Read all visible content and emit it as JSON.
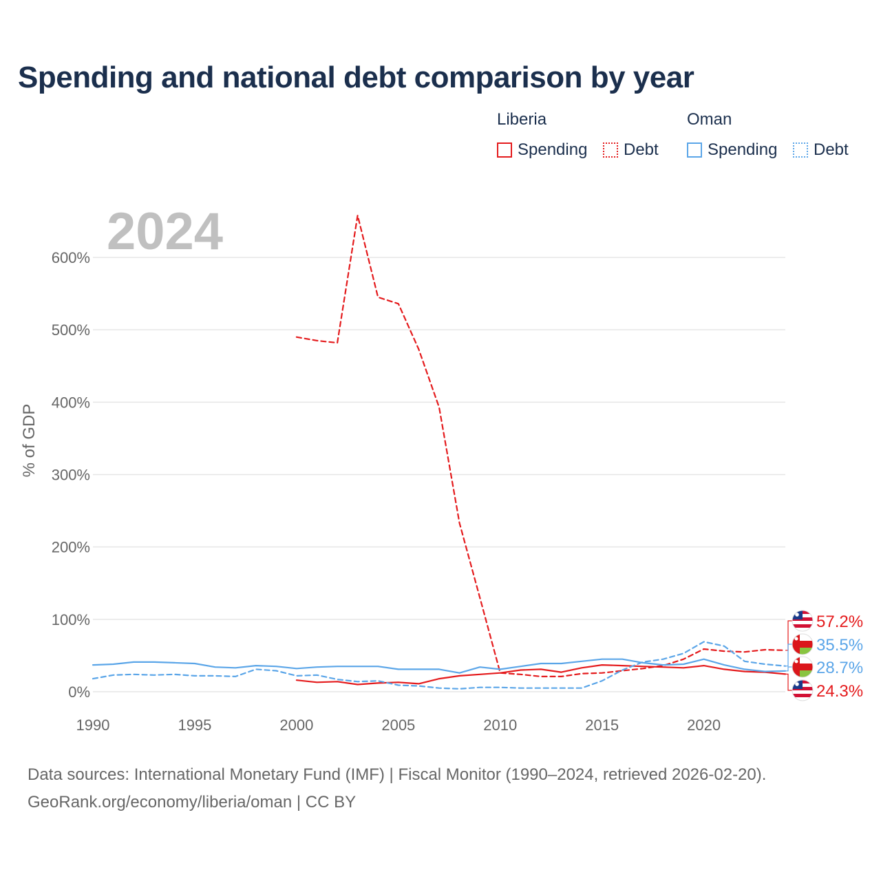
{
  "title": "Spending and national debt comparison by year",
  "legend": {
    "groups": [
      {
        "country": "Liberia",
        "items": [
          {
            "label": "Spending",
            "style": "solid"
          },
          {
            "label": "Debt",
            "style": "dotted"
          }
        ],
        "color": "#e41a1c"
      },
      {
        "country": "Oman",
        "items": [
          {
            "label": "Spending",
            "style": "solid"
          },
          {
            "label": "Debt",
            "style": "dotted"
          }
        ],
        "color": "#5aa5e8"
      }
    ]
  },
  "year_label": "2024",
  "footer": {
    "sources": "Data sources: International Monetary Fund (IMF) | Fiscal Monitor (1990–2024, retrieved 2026-02-20).",
    "credit": "GeoRank.org/economy/liberia/oman | CC BY"
  },
  "end_labels": [
    {
      "text": "57.2%",
      "color": "#e41a1c",
      "flag": "liberia-flag-icon"
    },
    {
      "text": "35.5%",
      "color": "#5aa5e8",
      "flag": "oman-flag-icon"
    },
    {
      "text": "28.7%",
      "color": "#5aa5e8",
      "flag": "oman-flag-icon"
    },
    {
      "text": "24.3%",
      "color": "#e41a1c",
      "flag": "liberia-flag-icon"
    }
  ],
  "colors": {
    "liberia": "#e41a1c",
    "oman": "#5aa5e8",
    "grid": "#e6e6e6",
    "axis_text": "#666666",
    "title": "#1b2f4d",
    "year": "#c0c0c0"
  },
  "chart_data": {
    "type": "line",
    "title": "Spending and national debt comparison by year",
    "xlabel": "",
    "ylabel": "% of GDP",
    "xlim": [
      1990,
      2024
    ],
    "ylim": [
      0,
      600
    ],
    "x_ticks": [
      1990,
      1995,
      2000,
      2005,
      2010,
      2015,
      2020
    ],
    "x_tick_labels": [
      "1990",
      "1995",
      "2000",
      "2005",
      "2010",
      "2015",
      "2020"
    ],
    "y_ticks": [
      0,
      100,
      200,
      300,
      400,
      500,
      600
    ],
    "y_tick_labels": [
      "0%",
      "100%",
      "200%",
      "300%",
      "400%",
      "500%",
      "600%"
    ],
    "series": [
      {
        "name": "Liberia Spending",
        "country": "Liberia",
        "measure": "Spending",
        "style": "solid",
        "color": "#e41a1c",
        "x": [
          2000,
          2001,
          2002,
          2003,
          2004,
          2005,
          2006,
          2007,
          2008,
          2009,
          2010,
          2011,
          2012,
          2013,
          2014,
          2015,
          2016,
          2017,
          2018,
          2019,
          2020,
          2021,
          2022,
          2023,
          2024
        ],
        "values": [
          16,
          13,
          14,
          10,
          12,
          13,
          11,
          18,
          22,
          24,
          26,
          30,
          31,
          27,
          33,
          37,
          36,
          35,
          34,
          33,
          36,
          31,
          28,
          27,
          24.3
        ]
      },
      {
        "name": "Liberia Debt",
        "country": "Liberia",
        "measure": "Debt",
        "style": "dashed",
        "color": "#e41a1c",
        "x": [
          2000,
          2001,
          2002,
          2003,
          2004,
          2005,
          2006,
          2007,
          2008,
          2009,
          2010,
          2011,
          2012,
          2013,
          2014,
          2015,
          2016,
          2017,
          2018,
          2019,
          2020,
          2021,
          2022,
          2023,
          2024
        ],
        "values": [
          490,
          485,
          482,
          658,
          545,
          536,
          473,
          393,
          233,
          130,
          26,
          24,
          21,
          21,
          25,
          26,
          29,
          32,
          36,
          45,
          59,
          56,
          55,
          58,
          57.2
        ]
      },
      {
        "name": "Oman Spending",
        "country": "Oman",
        "measure": "Spending",
        "style": "solid",
        "color": "#5aa5e8",
        "x": [
          1990,
          1991,
          1992,
          1993,
          1994,
          1995,
          1996,
          1997,
          1998,
          1999,
          2000,
          2001,
          2002,
          2003,
          2004,
          2005,
          2006,
          2007,
          2008,
          2009,
          2010,
          2011,
          2012,
          2013,
          2014,
          2015,
          2016,
          2017,
          2018,
          2019,
          2020,
          2021,
          2022,
          2023,
          2024
        ],
        "values": [
          37,
          38,
          41,
          41,
          40,
          39,
          34,
          33,
          36,
          35,
          32,
          34,
          35,
          35,
          35,
          31,
          31,
          31,
          26,
          34,
          31,
          35,
          39,
          39,
          42,
          45,
          45,
          40,
          37,
          38,
          45,
          37,
          31,
          28,
          28.7
        ]
      },
      {
        "name": "Oman Debt",
        "country": "Oman",
        "measure": "Debt",
        "style": "dashed",
        "color": "#5aa5e8",
        "x": [
          1990,
          1991,
          1992,
          1993,
          1994,
          1995,
          1996,
          1997,
          1998,
          1999,
          2000,
          2001,
          2002,
          2003,
          2004,
          2005,
          2006,
          2007,
          2008,
          2009,
          2010,
          2011,
          2012,
          2013,
          2014,
          2015,
          2016,
          2017,
          2018,
          2019,
          2020,
          2021,
          2022,
          2023,
          2024
        ],
        "values": [
          18,
          23,
          24,
          23,
          24,
          22,
          22,
          21,
          31,
          29,
          22,
          23,
          17,
          14,
          15,
          9,
          8,
          5,
          4,
          6,
          6,
          5,
          5,
          5,
          5,
          15,
          30,
          41,
          45,
          53,
          69,
          63,
          42,
          38,
          35.5
        ]
      }
    ]
  }
}
